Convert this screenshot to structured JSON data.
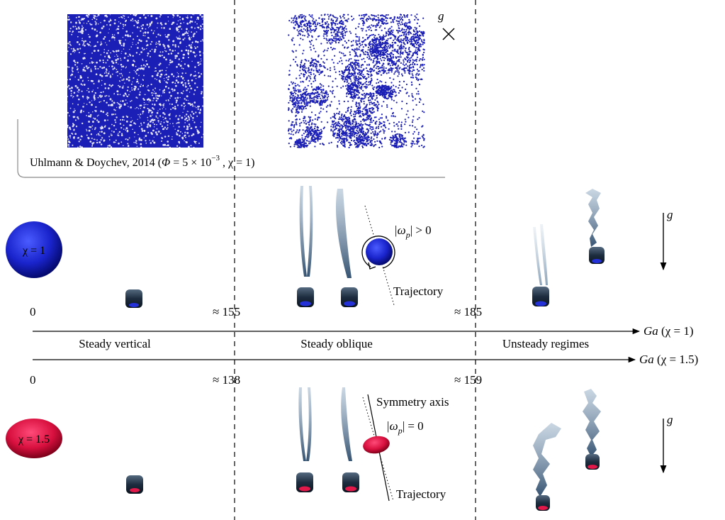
{
  "citation": {
    "prefix": "Uhlmann & Doychev, 2014 (",
    "phi_symbol": "Φ",
    "phi_value": " = 5 × 10",
    "phi_exp": "−3",
    "chi_part": " , χ = 1)"
  },
  "gravity_label": "g",
  "thresholds_chi1": {
    "zero": "0",
    "first": "≈ 155",
    "second": "≈ 185"
  },
  "thresholds_chi15": {
    "zero": "0",
    "first": "≈ 138",
    "second": "≈ 159"
  },
  "axis_chi1": {
    "symbol": "Ga",
    "suffix": " (χ = 1)"
  },
  "axis_chi15": {
    "symbol": "Ga",
    "suffix": " (χ = 1.5)"
  },
  "regimes": [
    "Steady vertical",
    "Steady oblique",
    "Unsteady regimes"
  ],
  "sphere_label": "χ = 1",
  "spheroid_label": "χ = 1.5",
  "omega_nonzero": {
    "lhs": "|ω",
    "sub": "p",
    "rhs": "| > 0"
  },
  "omega_zero": {
    "lhs": "|ω",
    "sub": "p",
    "rhs": "| = 0"
  },
  "trajectory_label": "Trajectory",
  "symmetry_label": "Symmetry axis",
  "colors": {
    "sphere": "#1a2ad0",
    "spheroid": "#e0194a",
    "wake": "#4a6a8a",
    "particle_blue": "#1b1fb5"
  }
}
